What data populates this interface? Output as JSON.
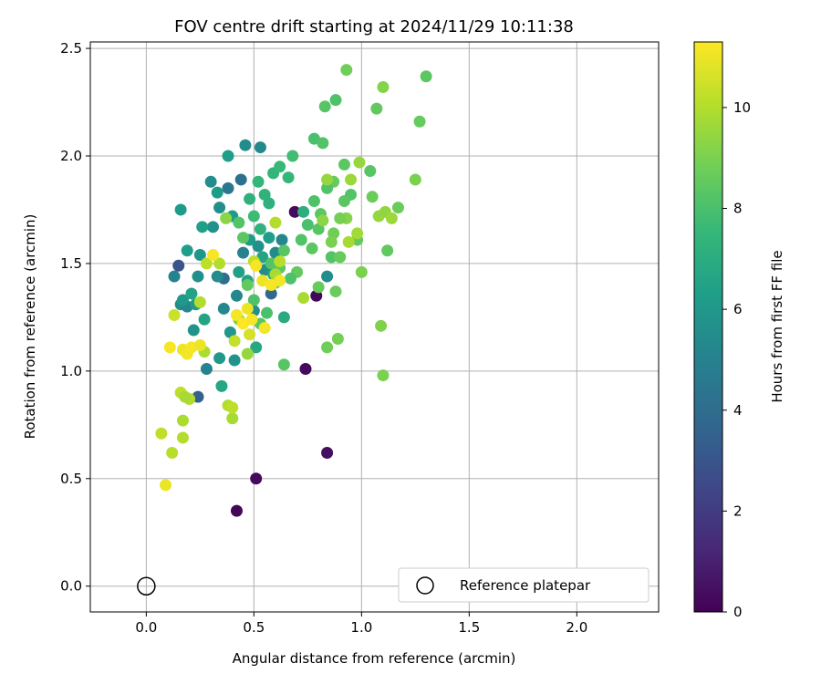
{
  "chart_data": {
    "type": "scatter",
    "title": "FOV centre drift starting at 2024/11/29 10:11:38",
    "xlabel": "Angular distance from reference (arcmin)",
    "ylabel": "Rotation from reference (arcmin)",
    "xlim": [
      -0.26,
      2.38
    ],
    "ylim": [
      -0.12,
      2.53
    ],
    "xticks": [
      0.0,
      0.5,
      1.0,
      1.5,
      2.0
    ],
    "xtick_labels": [
      "0.0",
      "0.5",
      "1.0",
      "1.5",
      "2.0"
    ],
    "yticks": [
      0.0,
      0.5,
      1.0,
      1.5,
      2.0,
      2.5
    ],
    "ytick_labels": [
      "0.0",
      "0.5",
      "1.0",
      "1.5",
      "2.0",
      "2.5"
    ],
    "grid": true,
    "legend_position": "lower-right",
    "legend": {
      "label": "Reference platepar"
    },
    "reference_point": {
      "x": 0.0,
      "y": 0.0
    },
    "colorbar": {
      "label": "Hours from first FF file",
      "range": [
        0,
        11.3
      ],
      "ticks": [
        0,
        2,
        4,
        6,
        8,
        10
      ],
      "tick_labels": [
        "0",
        "2",
        "4",
        "6",
        "8",
        "10"
      ],
      "colormap": "viridis"
    },
    "colors": {
      "viridis": [
        "#440154",
        "#482878",
        "#3e4989",
        "#31688e",
        "#26828e",
        "#1f9e89",
        "#35b779",
        "#6ece58",
        "#b5de2b",
        "#fde725"
      ]
    },
    "points": [
      {
        "x": 0.42,
        "y": 0.35,
        "c": 0.2
      },
      {
        "x": 0.51,
        "y": 0.5,
        "c": 0.3
      },
      {
        "x": 0.84,
        "y": 0.62,
        "c": 0.4
      },
      {
        "x": 0.74,
        "y": 1.01,
        "c": 0.3
      },
      {
        "x": 0.79,
        "y": 1.35,
        "c": 0.2
      },
      {
        "x": 0.69,
        "y": 1.74,
        "c": 0.3
      },
      {
        "x": 0.15,
        "y": 1.49,
        "c": 3.0
      },
      {
        "x": 0.24,
        "y": 0.88,
        "c": 3.5
      },
      {
        "x": 0.36,
        "y": 1.43,
        "c": 4.0
      },
      {
        "x": 0.44,
        "y": 1.89,
        "c": 4.2
      },
      {
        "x": 0.38,
        "y": 1.85,
        "c": 4.5
      },
      {
        "x": 0.58,
        "y": 1.36,
        "c": 3.8
      },
      {
        "x": 0.13,
        "y": 1.44,
        "c": 5.0
      },
      {
        "x": 0.16,
        "y": 1.31,
        "c": 5.5
      },
      {
        "x": 0.19,
        "y": 1.3,
        "c": 5.2
      },
      {
        "x": 0.22,
        "y": 1.19,
        "c": 5.8
      },
      {
        "x": 0.24,
        "y": 1.44,
        "c": 5.6
      },
      {
        "x": 0.25,
        "y": 1.54,
        "c": 5.9
      },
      {
        "x": 0.28,
        "y": 1.01,
        "c": 5.0
      },
      {
        "x": 0.3,
        "y": 1.88,
        "c": 5.5
      },
      {
        "x": 0.31,
        "y": 1.67,
        "c": 5.7
      },
      {
        "x": 0.33,
        "y": 1.44,
        "c": 5.4
      },
      {
        "x": 0.34,
        "y": 1.76,
        "c": 5.6
      },
      {
        "x": 0.36,
        "y": 1.29,
        "c": 5.3
      },
      {
        "x": 0.39,
        "y": 1.18,
        "c": 5.9
      },
      {
        "x": 0.41,
        "y": 1.05,
        "c": 5.8
      },
      {
        "x": 0.42,
        "y": 1.35,
        "c": 5.2
      },
      {
        "x": 0.45,
        "y": 1.55,
        "c": 5.0
      },
      {
        "x": 0.46,
        "y": 2.05,
        "c": 5.5
      },
      {
        "x": 0.5,
        "y": 1.28,
        "c": 5.6
      },
      {
        "x": 0.52,
        "y": 1.58,
        "c": 5.7
      },
      {
        "x": 0.53,
        "y": 2.04,
        "c": 5.3
      },
      {
        "x": 0.55,
        "y": 1.47,
        "c": 5.5
      },
      {
        "x": 0.6,
        "y": 1.55,
        "c": 5.4
      },
      {
        "x": 0.63,
        "y": 1.61,
        "c": 5.2
      },
      {
        "x": 0.84,
        "y": 1.44,
        "c": 5.5
      },
      {
        "x": 0.16,
        "y": 1.75,
        "c": 6.2
      },
      {
        "x": 0.17,
        "y": 1.33,
        "c": 6.0
      },
      {
        "x": 0.19,
        "y": 1.56,
        "c": 6.3
      },
      {
        "x": 0.21,
        "y": 1.36,
        "c": 6.5
      },
      {
        "x": 0.23,
        "y": 1.31,
        "c": 6.1
      },
      {
        "x": 0.26,
        "y": 1.67,
        "c": 6.4
      },
      {
        "x": 0.27,
        "y": 1.24,
        "c": 6.6
      },
      {
        "x": 0.33,
        "y": 1.83,
        "c": 6.2
      },
      {
        "x": 0.34,
        "y": 1.06,
        "c": 6.0
      },
      {
        "x": 0.35,
        "y": 0.93,
        "c": 6.7
      },
      {
        "x": 0.38,
        "y": 2.0,
        "c": 6.3
      },
      {
        "x": 0.4,
        "y": 1.72,
        "c": 6.1
      },
      {
        "x": 0.43,
        "y": 1.46,
        "c": 6.4
      },
      {
        "x": 0.47,
        "y": 1.42,
        "c": 6.5
      },
      {
        "x": 0.48,
        "y": 1.61,
        "c": 6.2
      },
      {
        "x": 0.51,
        "y": 1.11,
        "c": 6.8
      },
      {
        "x": 0.54,
        "y": 1.53,
        "c": 6.6
      },
      {
        "x": 0.57,
        "y": 1.62,
        "c": 6.3
      },
      {
        "x": 0.64,
        "y": 1.25,
        "c": 6.9
      },
      {
        "x": 0.59,
        "y": 1.45,
        "c": 6.5
      },
      {
        "x": 0.48,
        "y": 1.8,
        "c": 7.2
      },
      {
        "x": 0.52,
        "y": 1.88,
        "c": 7.5
      },
      {
        "x": 0.55,
        "y": 1.82,
        "c": 7.3
      },
      {
        "x": 0.59,
        "y": 1.92,
        "c": 7.4
      },
      {
        "x": 0.62,
        "y": 1.95,
        "c": 7.6
      },
      {
        "x": 0.68,
        "y": 2.0,
        "c": 7.8
      },
      {
        "x": 0.73,
        "y": 1.74,
        "c": 7.1
      },
      {
        "x": 0.66,
        "y": 1.9,
        "c": 7.5
      },
      {
        "x": 0.57,
        "y": 1.78,
        "c": 7.2
      },
      {
        "x": 0.5,
        "y": 1.72,
        "c": 7.7
      },
      {
        "x": 0.53,
        "y": 1.66,
        "c": 7.3
      },
      {
        "x": 0.78,
        "y": 2.08,
        "c": 8.0
      },
      {
        "x": 0.82,
        "y": 2.06,
        "c": 8.2
      },
      {
        "x": 0.83,
        "y": 2.23,
        "c": 8.3
      },
      {
        "x": 0.88,
        "y": 2.26,
        "c": 8.1
      },
      {
        "x": 0.92,
        "y": 1.96,
        "c": 8.4
      },
      {
        "x": 0.93,
        "y": 2.4,
        "c": 8.8
      },
      {
        "x": 1.07,
        "y": 2.22,
        "c": 8.5
      },
      {
        "x": 1.1,
        "y": 2.32,
        "c": 9.2
      },
      {
        "x": 1.27,
        "y": 2.16,
        "c": 8.6
      },
      {
        "x": 1.3,
        "y": 2.37,
        "c": 8.4
      },
      {
        "x": 1.04,
        "y": 1.93,
        "c": 8.3
      },
      {
        "x": 1.05,
        "y": 1.81,
        "c": 8.7
      },
      {
        "x": 1.12,
        "y": 1.56,
        "c": 8.5
      },
      {
        "x": 1.0,
        "y": 1.46,
        "c": 9.0
      },
      {
        "x": 1.09,
        "y": 1.21,
        "c": 9.1
      },
      {
        "x": 1.1,
        "y": 0.98,
        "c": 9.0
      },
      {
        "x": 0.95,
        "y": 1.82,
        "c": 8.2
      },
      {
        "x": 0.92,
        "y": 1.79,
        "c": 8.4
      },
      {
        "x": 0.87,
        "y": 1.88,
        "c": 8.6
      },
      {
        "x": 0.84,
        "y": 1.85,
        "c": 8.2
      },
      {
        "x": 0.78,
        "y": 1.79,
        "c": 8.1
      },
      {
        "x": 0.8,
        "y": 1.66,
        "c": 8.3
      },
      {
        "x": 0.77,
        "y": 1.57,
        "c": 8.4
      },
      {
        "x": 0.75,
        "y": 1.68,
        "c": 8.0
      },
      {
        "x": 0.72,
        "y": 1.61,
        "c": 8.2
      },
      {
        "x": 0.7,
        "y": 1.46,
        "c": 8.5
      },
      {
        "x": 0.67,
        "y": 1.43,
        "c": 8.1
      },
      {
        "x": 0.64,
        "y": 1.56,
        "c": 8.3
      },
      {
        "x": 0.62,
        "y": 1.48,
        "c": 8.4
      },
      {
        "x": 0.6,
        "y": 1.41,
        "c": 8.6
      },
      {
        "x": 0.58,
        "y": 1.5,
        "c": 8.2
      },
      {
        "x": 0.56,
        "y": 1.27,
        "c": 8.0
      },
      {
        "x": 0.53,
        "y": 1.22,
        "c": 8.3
      },
      {
        "x": 0.5,
        "y": 1.33,
        "c": 8.1
      },
      {
        "x": 0.47,
        "y": 1.4,
        "c": 8.5
      },
      {
        "x": 0.45,
        "y": 1.62,
        "c": 8.4
      },
      {
        "x": 0.43,
        "y": 1.69,
        "c": 8.2
      },
      {
        "x": 0.64,
        "y": 1.03,
        "c": 8.3
      },
      {
        "x": 0.84,
        "y": 1.11,
        "c": 8.8
      },
      {
        "x": 0.89,
        "y": 1.15,
        "c": 8.9
      },
      {
        "x": 0.88,
        "y": 1.37,
        "c": 8.7
      },
      {
        "x": 0.8,
        "y": 1.39,
        "c": 8.6
      },
      {
        "x": 0.86,
        "y": 1.53,
        "c": 8.2
      },
      {
        "x": 0.9,
        "y": 1.53,
        "c": 8.6
      },
      {
        "x": 0.81,
        "y": 1.73,
        "c": 8.4
      },
      {
        "x": 0.98,
        "y": 1.61,
        "c": 8.5
      },
      {
        "x": 1.17,
        "y": 1.76,
        "c": 8.7
      },
      {
        "x": 1.25,
        "y": 1.89,
        "c": 9.0
      },
      {
        "x": 0.93,
        "y": 1.71,
        "c": 9.2
      },
      {
        "x": 0.9,
        "y": 1.71,
        "c": 8.9
      },
      {
        "x": 0.87,
        "y": 1.64,
        "c": 8.8
      },
      {
        "x": 0.86,
        "y": 1.6,
        "c": 9.0
      },
      {
        "x": 0.82,
        "y": 1.7,
        "c": 9.3
      },
      {
        "x": 0.84,
        "y": 1.89,
        "c": 9.5
      },
      {
        "x": 0.99,
        "y": 1.97,
        "c": 9.5
      },
      {
        "x": 0.95,
        "y": 1.89,
        "c": 9.6
      },
      {
        "x": 0.98,
        "y": 1.64,
        "c": 9.7
      },
      {
        "x": 0.94,
        "y": 1.6,
        "c": 9.8
      },
      {
        "x": 1.08,
        "y": 1.72,
        "c": 9.5
      },
      {
        "x": 1.11,
        "y": 1.74,
        "c": 9.4
      },
      {
        "x": 1.14,
        "y": 1.71,
        "c": 9.6
      },
      {
        "x": 0.73,
        "y": 1.34,
        "c": 9.8
      },
      {
        "x": 0.47,
        "y": 1.08,
        "c": 9.5
      },
      {
        "x": 0.43,
        "y": 1.24,
        "c": 9.2
      },
      {
        "x": 0.37,
        "y": 1.71,
        "c": 9.3
      },
      {
        "x": 0.2,
        "y": 0.87,
        "c": 10.0
      },
      {
        "x": 0.16,
        "y": 0.9,
        "c": 10.2
      },
      {
        "x": 0.18,
        "y": 0.88,
        "c": 9.8
      },
      {
        "x": 0.17,
        "y": 0.69,
        "c": 10.0
      },
      {
        "x": 0.12,
        "y": 0.62,
        "c": 10.1
      },
      {
        "x": 0.07,
        "y": 0.71,
        "c": 10.2
      },
      {
        "x": 0.17,
        "y": 0.77,
        "c": 9.9
      },
      {
        "x": 0.38,
        "y": 0.84,
        "c": 10.0
      },
      {
        "x": 0.4,
        "y": 0.78,
        "c": 9.8
      },
      {
        "x": 0.4,
        "y": 0.83,
        "c": 10.2
      },
      {
        "x": 0.27,
        "y": 1.09,
        "c": 9.9
      },
      {
        "x": 0.25,
        "y": 1.32,
        "c": 10.0
      },
      {
        "x": 0.28,
        "y": 1.5,
        "c": 10.2
      },
      {
        "x": 0.34,
        "y": 1.5,
        "c": 10.0
      },
      {
        "x": 0.5,
        "y": 1.51,
        "c": 10.2
      },
      {
        "x": 0.6,
        "y": 1.45,
        "c": 9.8
      },
      {
        "x": 0.62,
        "y": 1.51,
        "c": 10.1
      },
      {
        "x": 0.6,
        "y": 1.69,
        "c": 10.0
      },
      {
        "x": 0.41,
        "y": 1.14,
        "c": 10.3
      },
      {
        "x": 0.13,
        "y": 1.26,
        "c": 10.4
      },
      {
        "x": 0.48,
        "y": 1.17,
        "c": 10.6
      },
      {
        "x": 0.09,
        "y": 0.47,
        "c": 11.0
      },
      {
        "x": 0.11,
        "y": 1.11,
        "c": 11.2
      },
      {
        "x": 0.17,
        "y": 1.1,
        "c": 11.0
      },
      {
        "x": 0.19,
        "y": 1.08,
        "c": 11.1
      },
      {
        "x": 0.21,
        "y": 1.11,
        "c": 11.2
      },
      {
        "x": 0.25,
        "y": 1.12,
        "c": 11.0
      },
      {
        "x": 0.31,
        "y": 1.54,
        "c": 11.2
      },
      {
        "x": 0.42,
        "y": 1.26,
        "c": 11.1
      },
      {
        "x": 0.45,
        "y": 1.22,
        "c": 11.3
      },
      {
        "x": 0.47,
        "y": 1.29,
        "c": 11.0
      },
      {
        "x": 0.49,
        "y": 1.24,
        "c": 11.2
      },
      {
        "x": 0.55,
        "y": 1.2,
        "c": 11.1
      },
      {
        "x": 0.54,
        "y": 1.42,
        "c": 11.0
      },
      {
        "x": 0.58,
        "y": 1.4,
        "c": 11.2
      },
      {
        "x": 0.62,
        "y": 1.42,
        "c": 11.1
      },
      {
        "x": 0.51,
        "y": 1.49,
        "c": 11.2
      }
    ]
  }
}
